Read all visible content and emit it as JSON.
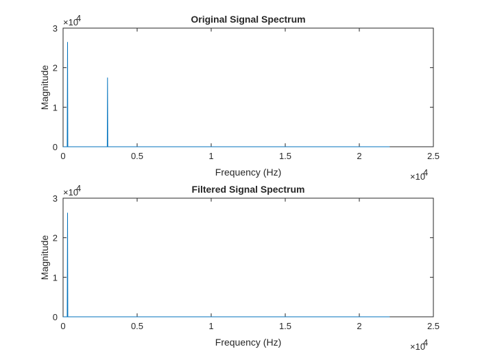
{
  "chart_data": [
    {
      "type": "line",
      "title": "Original Signal Spectrum",
      "xlabel": "Frequency (Hz)",
      "ylabel": "Magnitude",
      "xlim": [
        0,
        25000
      ],
      "ylim": [
        0,
        30000
      ],
      "xticks": [
        0,
        5000,
        10000,
        15000,
        20000,
        25000
      ],
      "xtick_labels": [
        "0",
        "0.5",
        "1",
        "1.5",
        "2",
        "2.5"
      ],
      "x_multiplier": "×10",
      "x_exponent": "4",
      "yticks": [
        0,
        10000,
        20000,
        30000
      ],
      "ytick_labels": [
        "0",
        "1",
        "2",
        "3"
      ],
      "y_multiplier": "×10",
      "y_exponent": "4",
      "grid": false,
      "color": "#0072BD",
      "series": [
        {
          "x": [
            0,
            280,
            300,
            320,
            340,
            2980,
            3000,
            3020,
            3040,
            22050
          ],
          "y": [
            0,
            0,
            26500,
            0,
            0,
            0,
            17500,
            0,
            0,
            0
          ]
        }
      ]
    },
    {
      "type": "line",
      "title": "Filtered Signal Spectrum",
      "xlabel": "Frequency (Hz)",
      "ylabel": "Magnitude",
      "xlim": [
        0,
        25000
      ],
      "ylim": [
        0,
        30000
      ],
      "xticks": [
        0,
        5000,
        10000,
        15000,
        20000,
        25000
      ],
      "xtick_labels": [
        "0",
        "0.5",
        "1",
        "1.5",
        "2",
        "2.5"
      ],
      "x_multiplier": "×10",
      "x_exponent": "4",
      "yticks": [
        0,
        10000,
        20000,
        30000
      ],
      "ytick_labels": [
        "0",
        "1",
        "2",
        "3"
      ],
      "y_multiplier": "×10",
      "y_exponent": "4",
      "grid": false,
      "color": "#0072BD",
      "series": [
        {
          "x": [
            0,
            280,
            300,
            320,
            340,
            22050
          ],
          "y": [
            0,
            0,
            26300,
            0,
            0,
            0
          ]
        }
      ]
    }
  ]
}
